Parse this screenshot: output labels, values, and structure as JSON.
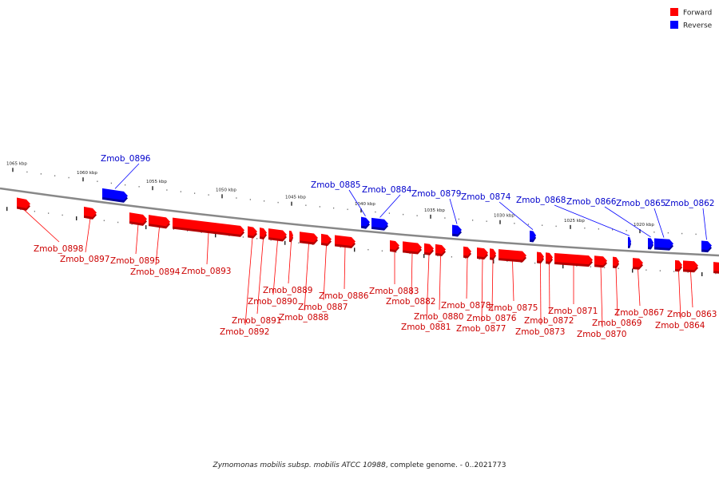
{
  "legend": {
    "forward": {
      "label": "Forward",
      "color": "#ff0000"
    },
    "reverse": {
      "label": "Reverse",
      "color": "#0000ff"
    }
  },
  "caption": {
    "organism": "Zymomonas mobilis subsp. mobilis ATCC 10988",
    "suffix": ", complete genome. - 0..2021773"
  },
  "scale_labels": [
    "1065 kbp",
    "1060 kbp",
    "1055 kbp",
    "1050 kbp",
    "1045 kbp",
    "1040 kbp",
    "1035 kbp",
    "1030 kbp",
    "1025 kbp",
    "1020 kbp"
  ],
  "colors": {
    "forward": "#ff0000",
    "reverse": "#0000ff",
    "backbone": "#888888"
  },
  "genes": [
    {
      "name": "Zmob_0898",
      "strand": "forward"
    },
    {
      "name": "Zmob_0897",
      "strand": "forward"
    },
    {
      "name": "Zmob_0896",
      "strand": "reverse"
    },
    {
      "name": "Zmob_0895",
      "strand": "forward"
    },
    {
      "name": "Zmob_0894",
      "strand": "forward"
    },
    {
      "name": "Zmob_0893",
      "strand": "forward"
    },
    {
      "name": "Zmob_0892",
      "strand": "forward"
    },
    {
      "name": "Zmob_0891",
      "strand": "forward"
    },
    {
      "name": "Zmob_0890",
      "strand": "forward"
    },
    {
      "name": "Zmob_0889",
      "strand": "forward"
    },
    {
      "name": "Zmob_0888",
      "strand": "forward"
    },
    {
      "name": "Zmob_0887",
      "strand": "forward"
    },
    {
      "name": "Zmob_0886",
      "strand": "forward"
    },
    {
      "name": "Zmob_0885",
      "strand": "reverse"
    },
    {
      "name": "Zmob_0884",
      "strand": "reverse"
    },
    {
      "name": "Zmob_0883",
      "strand": "forward"
    },
    {
      "name": "Zmob_0882",
      "strand": "forward"
    },
    {
      "name": "Zmob_0881",
      "strand": "forward"
    },
    {
      "name": "Zmob_0880",
      "strand": "forward"
    },
    {
      "name": "Zmob_0879",
      "strand": "reverse"
    },
    {
      "name": "Zmob_0878",
      "strand": "forward"
    },
    {
      "name": "Zmob_0877",
      "strand": "forward"
    },
    {
      "name": "Zmob_0876",
      "strand": "forward"
    },
    {
      "name": "Zmob_0875",
      "strand": "forward"
    },
    {
      "name": "Zmob_0874",
      "strand": "reverse"
    },
    {
      "name": "Zmob_0873",
      "strand": "forward"
    },
    {
      "name": "Zmob_0872",
      "strand": "forward"
    },
    {
      "name": "Zmob_0871",
      "strand": "forward"
    },
    {
      "name": "Zmob_0870",
      "strand": "forward"
    },
    {
      "name": "Zmob_0869",
      "strand": "forward"
    },
    {
      "name": "Zmob_0868",
      "strand": "reverse"
    },
    {
      "name": "Zmob_0867",
      "strand": "forward"
    },
    {
      "name": "Zmob_0866",
      "strand": "reverse"
    },
    {
      "name": "Zmob_0865",
      "strand": "reverse"
    },
    {
      "name": "Zmob_0864",
      "strand": "forward"
    },
    {
      "name": "Zmob_0863",
      "strand": "forward"
    },
    {
      "name": "Zmob_0862",
      "strand": "reverse"
    }
  ]
}
